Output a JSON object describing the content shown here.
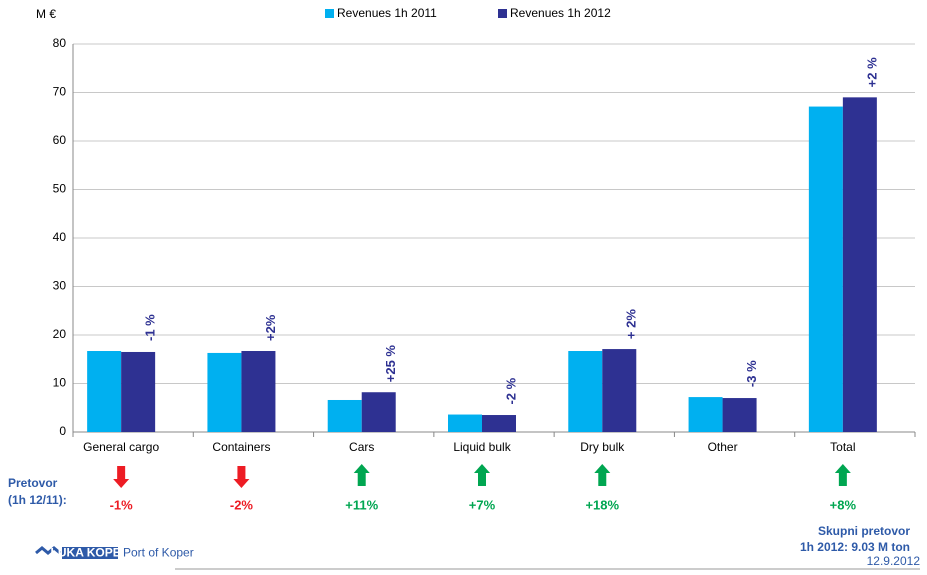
{
  "chart_data": {
    "type": "bar",
    "unit_label": "M €",
    "categories": [
      "General cargo",
      "Containers",
      "Cars",
      "Liquid bulk",
      "Dry bulk",
      "Other",
      "Total"
    ],
    "series": [
      {
        "name": "Revenues  1h 2011",
        "color": "#00b0f0",
        "values": [
          16.7,
          16.3,
          6.6,
          3.6,
          16.7,
          7.2,
          67.1
        ]
      },
      {
        "name": "Revenues  1h 2012",
        "color": "#2e3192",
        "values": [
          16.5,
          16.7,
          8.2,
          3.5,
          17.1,
          7.0,
          69.0
        ]
      }
    ],
    "change_labels": [
      "-1 %",
      "+2%",
      "+25 %",
      "-2 %",
      "+ 2%",
      "-3 %",
      "+2 %"
    ],
    "ylim": [
      0,
      80
    ],
    "yticks": [
      0,
      10,
      20,
      30,
      40,
      50,
      60,
      70,
      80
    ],
    "grid": true,
    "legend": "top",
    "throughput": {
      "label": [
        "Pretovor",
        "(1h 12/11):"
      ],
      "values": [
        -1,
        -2,
        11,
        7,
        18,
        null,
        8
      ],
      "value_labels": [
        "-1%",
        "-2%",
        "+11%",
        "+7%",
        "+18%",
        null,
        "+8%"
      ],
      "up_color": "#00a651",
      "down_color": "#ed1c24"
    }
  },
  "footer": {
    "summary": [
      "Skupni pretovor",
      "1h 2012: 9.03 M ton"
    ],
    "date": "12.9.2012",
    "logo": "LUKA KOPER",
    "logo_sub": "Port of Koper"
  }
}
